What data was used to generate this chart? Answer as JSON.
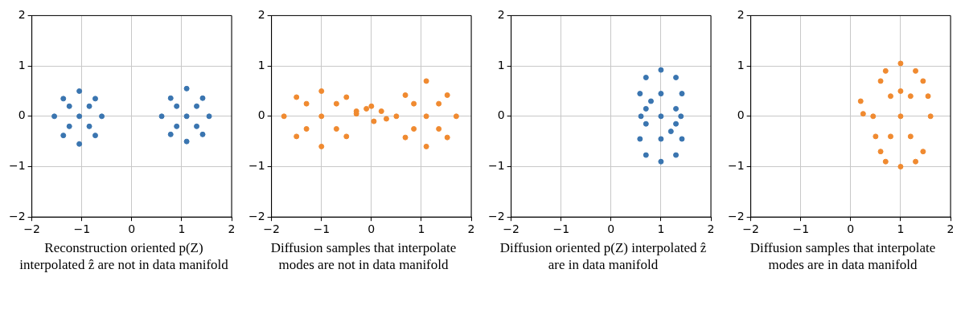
{
  "chart_data": [
    {
      "type": "scatter",
      "xlim": [
        -2,
        2
      ],
      "ylim": [
        -2,
        2
      ],
      "xticks": [
        -2,
        -1,
        0,
        1,
        2
      ],
      "yticks": [
        -2,
        -1,
        0,
        1,
        2
      ],
      "grid": true,
      "marker": "circle",
      "annotations": [
        "Reconstruction oriented p(Z) interpolated ẑ are not in data manifold"
      ],
      "series": [
        {
          "color": "#3a75b0",
          "x": [
            -1.05,
            -1.55,
            -0.6,
            -1.05,
            -1.05,
            -1.37,
            -0.73,
            -1.37,
            -0.73,
            -1.25,
            -0.85,
            -1.25,
            -0.85,
            1.1,
            0.6,
            1.55,
            1.1,
            1.1,
            0.78,
            1.42,
            0.78,
            1.42,
            0.9,
            1.3,
            0.9,
            1.3
          ],
          "values": [
            0,
            0,
            0,
            0.5,
            -0.55,
            0.35,
            0.35,
            -0.38,
            -0.38,
            0.2,
            0.2,
            -0.2,
            -0.2,
            0,
            0,
            0,
            0.55,
            -0.5,
            0.36,
            0.36,
            -0.36,
            -0.36,
            0.2,
            0.2,
            -0.2,
            -0.2
          ]
        }
      ]
    },
    {
      "type": "scatter",
      "xlim": [
        -2,
        2
      ],
      "ylim": [
        -2,
        2
      ],
      "xticks": [
        -2,
        -1,
        0,
        1,
        2
      ],
      "yticks": [
        -2,
        -1,
        0,
        1,
        2
      ],
      "grid": true,
      "marker": "circle",
      "annotations": [
        "Diffusion samples that interpolate modes are not in data manifold"
      ],
      "series": [
        {
          "color": "#f08a30",
          "x": [
            -1.0,
            -1.75,
            -0.3,
            -1.0,
            -1.0,
            -1.5,
            -0.5,
            -1.5,
            -0.5,
            -1.3,
            -0.7,
            -1.3,
            -0.7,
            -0.3,
            -0.1,
            0.05,
            0.2,
            0,
            0.3,
            1.1,
            0.5,
            1.7,
            1.1,
            1.1,
            0.68,
            1.52,
            0.68,
            1.52,
            0.85,
            1.35,
            0.85,
            1.35
          ],
          "values": [
            0,
            0,
            0.05,
            0.5,
            -0.6,
            0.38,
            0.38,
            -0.4,
            -0.4,
            0.25,
            0.25,
            -0.25,
            -0.25,
            0.1,
            0.15,
            -0.1,
            0.1,
            0.2,
            -0.05,
            0,
            0,
            0,
            0.7,
            -0.6,
            0.42,
            0.42,
            -0.42,
            -0.42,
            0.25,
            0.25,
            -0.25,
            -0.25
          ]
        }
      ]
    },
    {
      "type": "scatter",
      "xlim": [
        -2,
        2
      ],
      "ylim": [
        -2,
        2
      ],
      "xticks": [
        -2,
        -1,
        0,
        1,
        2
      ],
      "yticks": [
        -2,
        -1,
        0,
        1,
        2
      ],
      "grid": true,
      "marker": "circle",
      "annotations": [
        "Diffusion oriented p(Z) interpolated ẑ are in data manifold"
      ],
      "series": [
        {
          "color": "#3a75b0",
          "x": [
            1,
            0.58,
            1.42,
            1,
            1.3,
            0.7,
            1.3,
            0.7,
            1,
            0.58,
            1.42,
            1,
            1.3,
            0.7,
            1.3,
            0.7,
            0.6,
            1.4,
            1,
            0.8,
            1.2
          ],
          "values": [
            0.45,
            0.45,
            0.45,
            0.92,
            0.77,
            0.77,
            0.15,
            0.15,
            -0.45,
            -0.45,
            -0.45,
            -0.9,
            -0.77,
            -0.77,
            -0.15,
            -0.15,
            0,
            0,
            0,
            0.3,
            -0.3
          ]
        }
      ]
    },
    {
      "type": "scatter",
      "xlim": [
        -2,
        2
      ],
      "ylim": [
        -2,
        2
      ],
      "xticks": [
        -2,
        -1,
        0,
        1,
        2
      ],
      "yticks": [
        -2,
        -1,
        0,
        1,
        2
      ],
      "grid": true,
      "marker": "circle",
      "annotations": [
        "Diffusion samples that interpolate modes are in data manifold"
      ],
      "series": [
        {
          "color": "#f08a30",
          "x": [
            1,
            0.45,
            1.6,
            1,
            1,
            0.6,
            1.45,
            0.6,
            1.45,
            0.8,
            1.2,
            0.8,
            1.2,
            0.7,
            1.3,
            0.7,
            1.3,
            0.2,
            0.25,
            1,
            0.5,
            1.55
          ],
          "values": [
            0,
            0,
            0,
            1.05,
            -1,
            0.7,
            0.7,
            -0.7,
            -0.7,
            0.4,
            0.4,
            -0.4,
            -0.4,
            0.9,
            0.9,
            -0.9,
            -0.9,
            0.3,
            0.05,
            0.5,
            -0.4,
            0.4
          ]
        }
      ]
    }
  ]
}
